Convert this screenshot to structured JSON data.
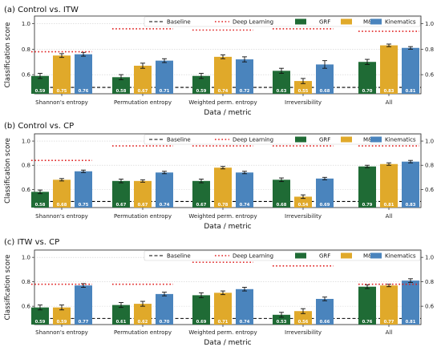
{
  "figure": {
    "ylabel": "Classification score",
    "xlabel": "Data / metric"
  },
  "legend": {
    "baseline": "Baseline",
    "deep_learning": "Deep Learning",
    "grf": "GRF",
    "mp": "M&P",
    "kinematics": "Kinematics"
  },
  "colors": {
    "grf": "#1f6b35",
    "mp": "#e0a92a",
    "kinematics": "#4a84bd",
    "deep_learning": "#e02020",
    "baseline": "#000000"
  },
  "chart_data": [
    {
      "type": "bar",
      "title": "(a) Control vs. ITW",
      "xlabel": "Data / metric",
      "ylabel": "Classification score",
      "categories": [
        "Shannon's entropy",
        "Permutation entropy",
        "Weighted perm. entropy",
        "Irreversibility",
        "All"
      ],
      "series": [
        {
          "name": "GRF",
          "values": [
            0.59,
            0.58,
            0.59,
            0.63,
            0.7
          ],
          "labels": [
            "0.59",
            "0.58",
            "0.59",
            "0.63",
            "0.70"
          ],
          "errors": [
            0.02,
            0.02,
            0.02,
            0.02,
            0.02
          ]
        },
        {
          "name": "M&P",
          "values": [
            0.75,
            0.67,
            0.74,
            0.55,
            0.83
          ],
          "labels": [
            "0.75",
            "0.67",
            "0.74",
            "0.55",
            "0.83"
          ],
          "errors": [
            0.015,
            0.02,
            0.015,
            0.02,
            0.01
          ]
        },
        {
          "name": "Kinematics",
          "values": [
            0.76,
            0.71,
            0.72,
            0.68,
            0.81
          ],
          "labels": [
            "0.76",
            "0.71",
            "0.72",
            "0.68",
            "0.81"
          ],
          "errors": [
            0.015,
            0.015,
            0.02,
            0.03,
            0.01
          ]
        }
      ],
      "deep_learning": [
        0.78,
        0.96,
        0.95,
        0.96,
        0.94
      ],
      "baseline": 0.5,
      "ylim": [
        0.45,
        1.06
      ],
      "yticks": [
        0.6,
        0.8,
        1.0
      ],
      "grid": true,
      "legend_position": "top-right"
    },
    {
      "type": "bar",
      "title": "(b) Control vs. CP",
      "xlabel": "Data / metric",
      "ylabel": "Classification score",
      "categories": [
        "Shannon's entropy",
        "Permutation entropy",
        "Weighted perm. entropy",
        "Irreversibility",
        "All"
      ],
      "series": [
        {
          "name": "GRF",
          "values": [
            0.58,
            0.67,
            0.67,
            0.68,
            0.79
          ],
          "labels": [
            "0.58",
            "0.67",
            "0.67",
            "0.68",
            "0.79"
          ],
          "errors": [
            0.015,
            0.015,
            0.015,
            0.015,
            0.01
          ]
        },
        {
          "name": "M&P",
          "values": [
            0.68,
            0.67,
            0.78,
            0.54,
            0.81
          ],
          "labels": [
            "0.68",
            "0.67",
            "0.78",
            "0.54",
            "0.81"
          ],
          "errors": [
            0.01,
            0.01,
            0.01,
            0.015,
            0.01
          ]
        },
        {
          "name": "Kinematics",
          "values": [
            0.75,
            0.74,
            0.74,
            0.69,
            0.83
          ],
          "labels": [
            "0.75",
            "0.74",
            "0.74",
            "0.69",
            "0.83"
          ],
          "errors": [
            0.01,
            0.01,
            0.01,
            0.01,
            0.01
          ]
        }
      ],
      "deep_learning": [
        0.84,
        0.96,
        0.96,
        0.96,
        0.96
      ],
      "baseline": 0.5,
      "ylim": [
        0.45,
        1.06
      ],
      "yticks": [
        0.6,
        0.8,
        1.0
      ],
      "grid": true,
      "legend_position": "top-right"
    },
    {
      "type": "bar",
      "title": "(c) ITW vs. CP",
      "xlabel": "Data / metric",
      "ylabel": "Classification score",
      "categories": [
        "Shannon's entropy",
        "Permutation entropy",
        "Weighted perm. entropy",
        "Irreversibility",
        "All"
      ],
      "series": [
        {
          "name": "GRF",
          "values": [
            0.59,
            0.61,
            0.69,
            0.53,
            0.76
          ],
          "labels": [
            "0.59",
            "0.61",
            "0.69",
            "0.53",
            "0.76"
          ],
          "errors": [
            0.02,
            0.02,
            0.02,
            0.02,
            0.015
          ]
        },
        {
          "name": "M&P",
          "values": [
            0.59,
            0.62,
            0.71,
            0.56,
            0.77
          ],
          "labels": [
            "0.59",
            "0.62",
            "0.71",
            "0.56",
            "0.77"
          ],
          "errors": [
            0.02,
            0.02,
            0.015,
            0.02,
            0.01
          ]
        },
        {
          "name": "Kinematics",
          "values": [
            0.77,
            0.7,
            0.74,
            0.66,
            0.81
          ],
          "labels": [
            "0.77",
            "0.70",
            "0.74",
            "0.66",
            "0.81"
          ],
          "errors": [
            0.015,
            0.015,
            0.015,
            0.015,
            0.015
          ]
        }
      ],
      "deep_learning": [
        0.78,
        0.78,
        0.96,
        0.93,
        0.78
      ],
      "baseline": 0.5,
      "ylim": [
        0.45,
        1.06
      ],
      "yticks": [
        0.6,
        0.8,
        1.0
      ],
      "grid": true,
      "legend_position": "top-right"
    }
  ]
}
